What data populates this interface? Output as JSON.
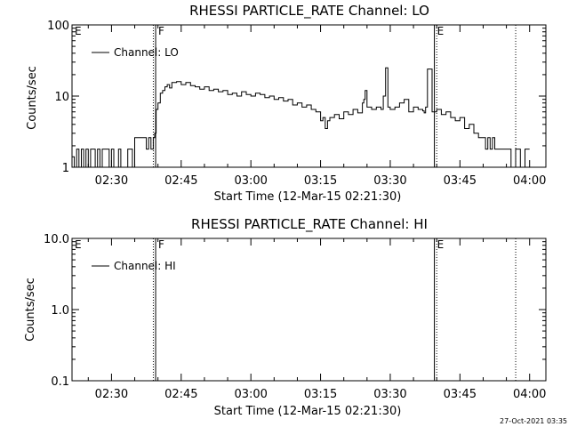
{
  "footer": {
    "date_stamp": "27-Oct-2021 03:35"
  },
  "chart_data": [
    {
      "type": "line",
      "title": "RHESSI PARTICLE_RATE Channel: LO",
      "xlabel": "Start Time (12-Mar-15 02:21:30)",
      "ylabel": "Counts/sec",
      "y_scale": "log",
      "ylim": [
        1,
        100
      ],
      "y_ticks": [
        1,
        10,
        100
      ],
      "y_tick_labels": [
        "1",
        "10",
        "100"
      ],
      "x_tick_labels": [
        "02:30",
        "02:45",
        "03:00",
        "03:15",
        "03:30",
        "03:45",
        "04:00"
      ],
      "xlim_minutes_after_02_00": [
        21.5,
        123.5
      ],
      "x_ticks_minutes_after_02_00": [
        30,
        45,
        60,
        75,
        90,
        105,
        120
      ],
      "legend": {
        "label": "Channel: LO",
        "position": "top-left"
      },
      "markers": [
        {
          "label": "E",
          "time": "02:21:30",
          "style": "solid"
        },
        {
          "label": "F",
          "time": "02:39:30",
          "style": "solid"
        },
        {
          "label": "",
          "time": "02:39:00",
          "style": "dotted"
        },
        {
          "label": "E",
          "time": "03:39:30",
          "style": "solid"
        },
        {
          "label": "",
          "time": "03:40:00",
          "style": "dotted"
        },
        {
          "label": "",
          "time": "03:57:00",
          "style": "dotted"
        }
      ],
      "series": [
        {
          "name": "Channel: LO",
          "x_minutes_after_02_00": [
            21.5,
            22,
            22.5,
            23,
            23.5,
            24,
            24.5,
            25,
            25.5,
            26,
            26.5,
            27,
            27.5,
            28,
            28.5,
            29,
            29.5,
            30,
            30.5,
            31,
            31.5,
            32,
            32.5,
            33,
            33.5,
            34,
            34.5,
            35,
            35.5,
            36,
            36.5,
            37,
            37.5,
            38,
            38.5,
            39,
            39.3,
            39.6,
            40,
            40.5,
            41,
            41.5,
            42,
            42.5,
            43,
            44,
            45,
            46,
            47,
            48,
            49,
            50,
            51,
            52,
            53,
            54,
            55,
            56,
            57,
            58,
            59,
            60,
            61,
            62,
            63,
            64,
            65,
            66,
            67,
            68,
            69,
            70,
            71,
            72,
            73,
            74,
            75,
            75.5,
            76,
            76.5,
            77,
            78,
            79,
            80,
            81,
            82,
            83,
            84,
            84.3,
            84.6,
            85,
            86,
            87,
            88,
            88.5,
            89,
            89.5,
            90,
            91,
            92,
            93,
            94,
            95,
            96,
            97,
            97.3,
            97.6,
            98,
            99,
            100,
            101,
            102,
            103,
            104,
            105,
            106,
            107,
            108,
            109,
            110,
            110.5,
            111,
            111.5,
            112,
            112.5,
            113,
            113.5,
            114,
            115,
            116,
            117,
            118,
            119,
            120
          ],
          "y": [
            1.4,
            1,
            1.8,
            1,
            1.8,
            1,
            1.8,
            1,
            1.8,
            1.8,
            1,
            1.8,
            1,
            1.8,
            1.8,
            1.8,
            1,
            1.8,
            1,
            1,
            1.8,
            1,
            1,
            1,
            1.8,
            1.8,
            1,
            2.6,
            2.6,
            2.6,
            2.6,
            2.6,
            1.8,
            2.6,
            1.8,
            2.6,
            3,
            6.5,
            8,
            11,
            12,
            13.5,
            14.5,
            13,
            15.5,
            16,
            14.5,
            15.5,
            14,
            13.5,
            12.5,
            13.5,
            12,
            12.5,
            11.5,
            12,
            10.5,
            11,
            10,
            11.5,
            10.5,
            10,
            11,
            10.5,
            9.5,
            10,
            9,
            9.5,
            8.5,
            9,
            7.5,
            8,
            7,
            7.5,
            6.5,
            6,
            4.5,
            5,
            3.5,
            4.5,
            5,
            5.5,
            4.8,
            6,
            5.5,
            6.5,
            5.8,
            8,
            9,
            12,
            7,
            6.5,
            7,
            6.5,
            10,
            25,
            7,
            6.5,
            7,
            8,
            9,
            6,
            7,
            6.5,
            6.2,
            5.8,
            7,
            24,
            6,
            6.5,
            5.5,
            6,
            5,
            4.5,
            5,
            3.5,
            4,
            3,
            2.6,
            2.6,
            1.8,
            2.6,
            1.8,
            2.6,
            1.8,
            1.8,
            1.8,
            1.8,
            1.8,
            1,
            1.8,
            1,
            1.8,
            1.8,
            1.8
          ]
        }
      ]
    },
    {
      "type": "line",
      "title": "RHESSI PARTICLE_RATE Channel: HI",
      "xlabel": "Start Time (12-Mar-15 02:21:30)",
      "ylabel": "Counts/sec",
      "y_scale": "log",
      "ylim": [
        0.1,
        10
      ],
      "y_ticks": [
        0.1,
        1,
        10
      ],
      "y_tick_labels": [
        "0.1",
        "1.0",
        "10.0"
      ],
      "x_tick_labels": [
        "02:30",
        "02:45",
        "03:00",
        "03:15",
        "03:30",
        "03:45",
        "04:00"
      ],
      "xlim_minutes_after_02_00": [
        21.5,
        123.5
      ],
      "x_ticks_minutes_after_02_00": [
        30,
        45,
        60,
        75,
        90,
        105,
        120
      ],
      "legend": {
        "label": "Channel: HI",
        "position": "top-left"
      },
      "markers": [
        {
          "label": "E",
          "time": "02:21:30",
          "style": "solid"
        },
        {
          "label": "F",
          "time": "02:39:30",
          "style": "solid"
        },
        {
          "label": "",
          "time": "02:39:00",
          "style": "dotted"
        },
        {
          "label": "E",
          "time": "03:39:30",
          "style": "solid"
        },
        {
          "label": "",
          "time": "03:40:00",
          "style": "dotted"
        },
        {
          "label": "",
          "time": "03:57:00",
          "style": "dotted"
        }
      ],
      "series": [
        {
          "name": "Channel: HI",
          "x_minutes_after_02_00": [],
          "y": []
        }
      ]
    }
  ]
}
